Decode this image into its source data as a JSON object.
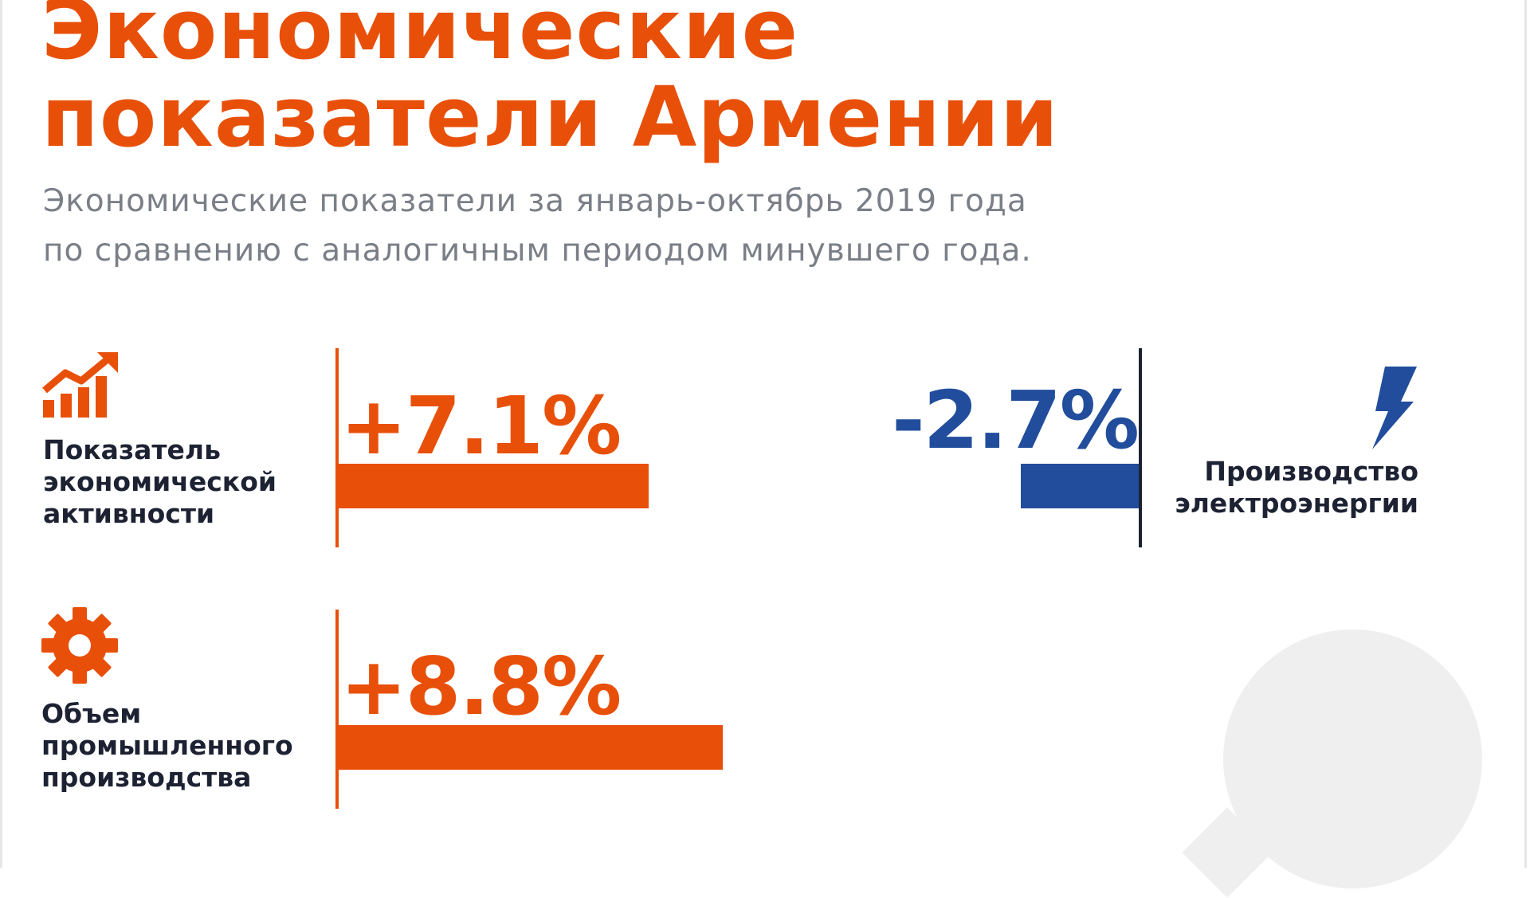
{
  "header": {
    "title_line1": "Экономические",
    "title_line2": "показатели Армении",
    "subtitle_line1": "Экономические показатели за январь-октябрь 2019 года",
    "subtitle_line2": "по сравнению с аналогичным периодом минувшего года."
  },
  "colors": {
    "accent": "#e8500a",
    "negative": "#214d9c",
    "text": "#1d2233",
    "muted": "#7a7f87"
  },
  "indicators": [
    {
      "value_label": "+7.1%",
      "label_lines": [
        "Показатель",
        "экономической",
        "активности"
      ],
      "icon": "growth-chart-icon"
    },
    {
      "value_label": "-2.7%",
      "label_lines": [
        "Производство",
        "электроэнергии"
      ],
      "icon": "lightning-icon"
    },
    {
      "value_label": "+8.8%",
      "label_lines": [
        "Объем",
        "промышленного",
        "производства"
      ],
      "icon": "gear-icon"
    }
  ],
  "chart_data": {
    "type": "bar",
    "categories": [
      "Показатель экономической активности",
      "Производство электроэнергии",
      "Объем промышленного производства"
    ],
    "values": [
      7.1,
      -2.7,
      8.8
    ],
    "title": "Экономические показатели Армении",
    "subtitle": "Экономические показатели за январь-октябрь 2019 года по сравнению с аналогичным периодом минувшего года.",
    "xlabel": "",
    "ylabel": "",
    "grid": false
  }
}
